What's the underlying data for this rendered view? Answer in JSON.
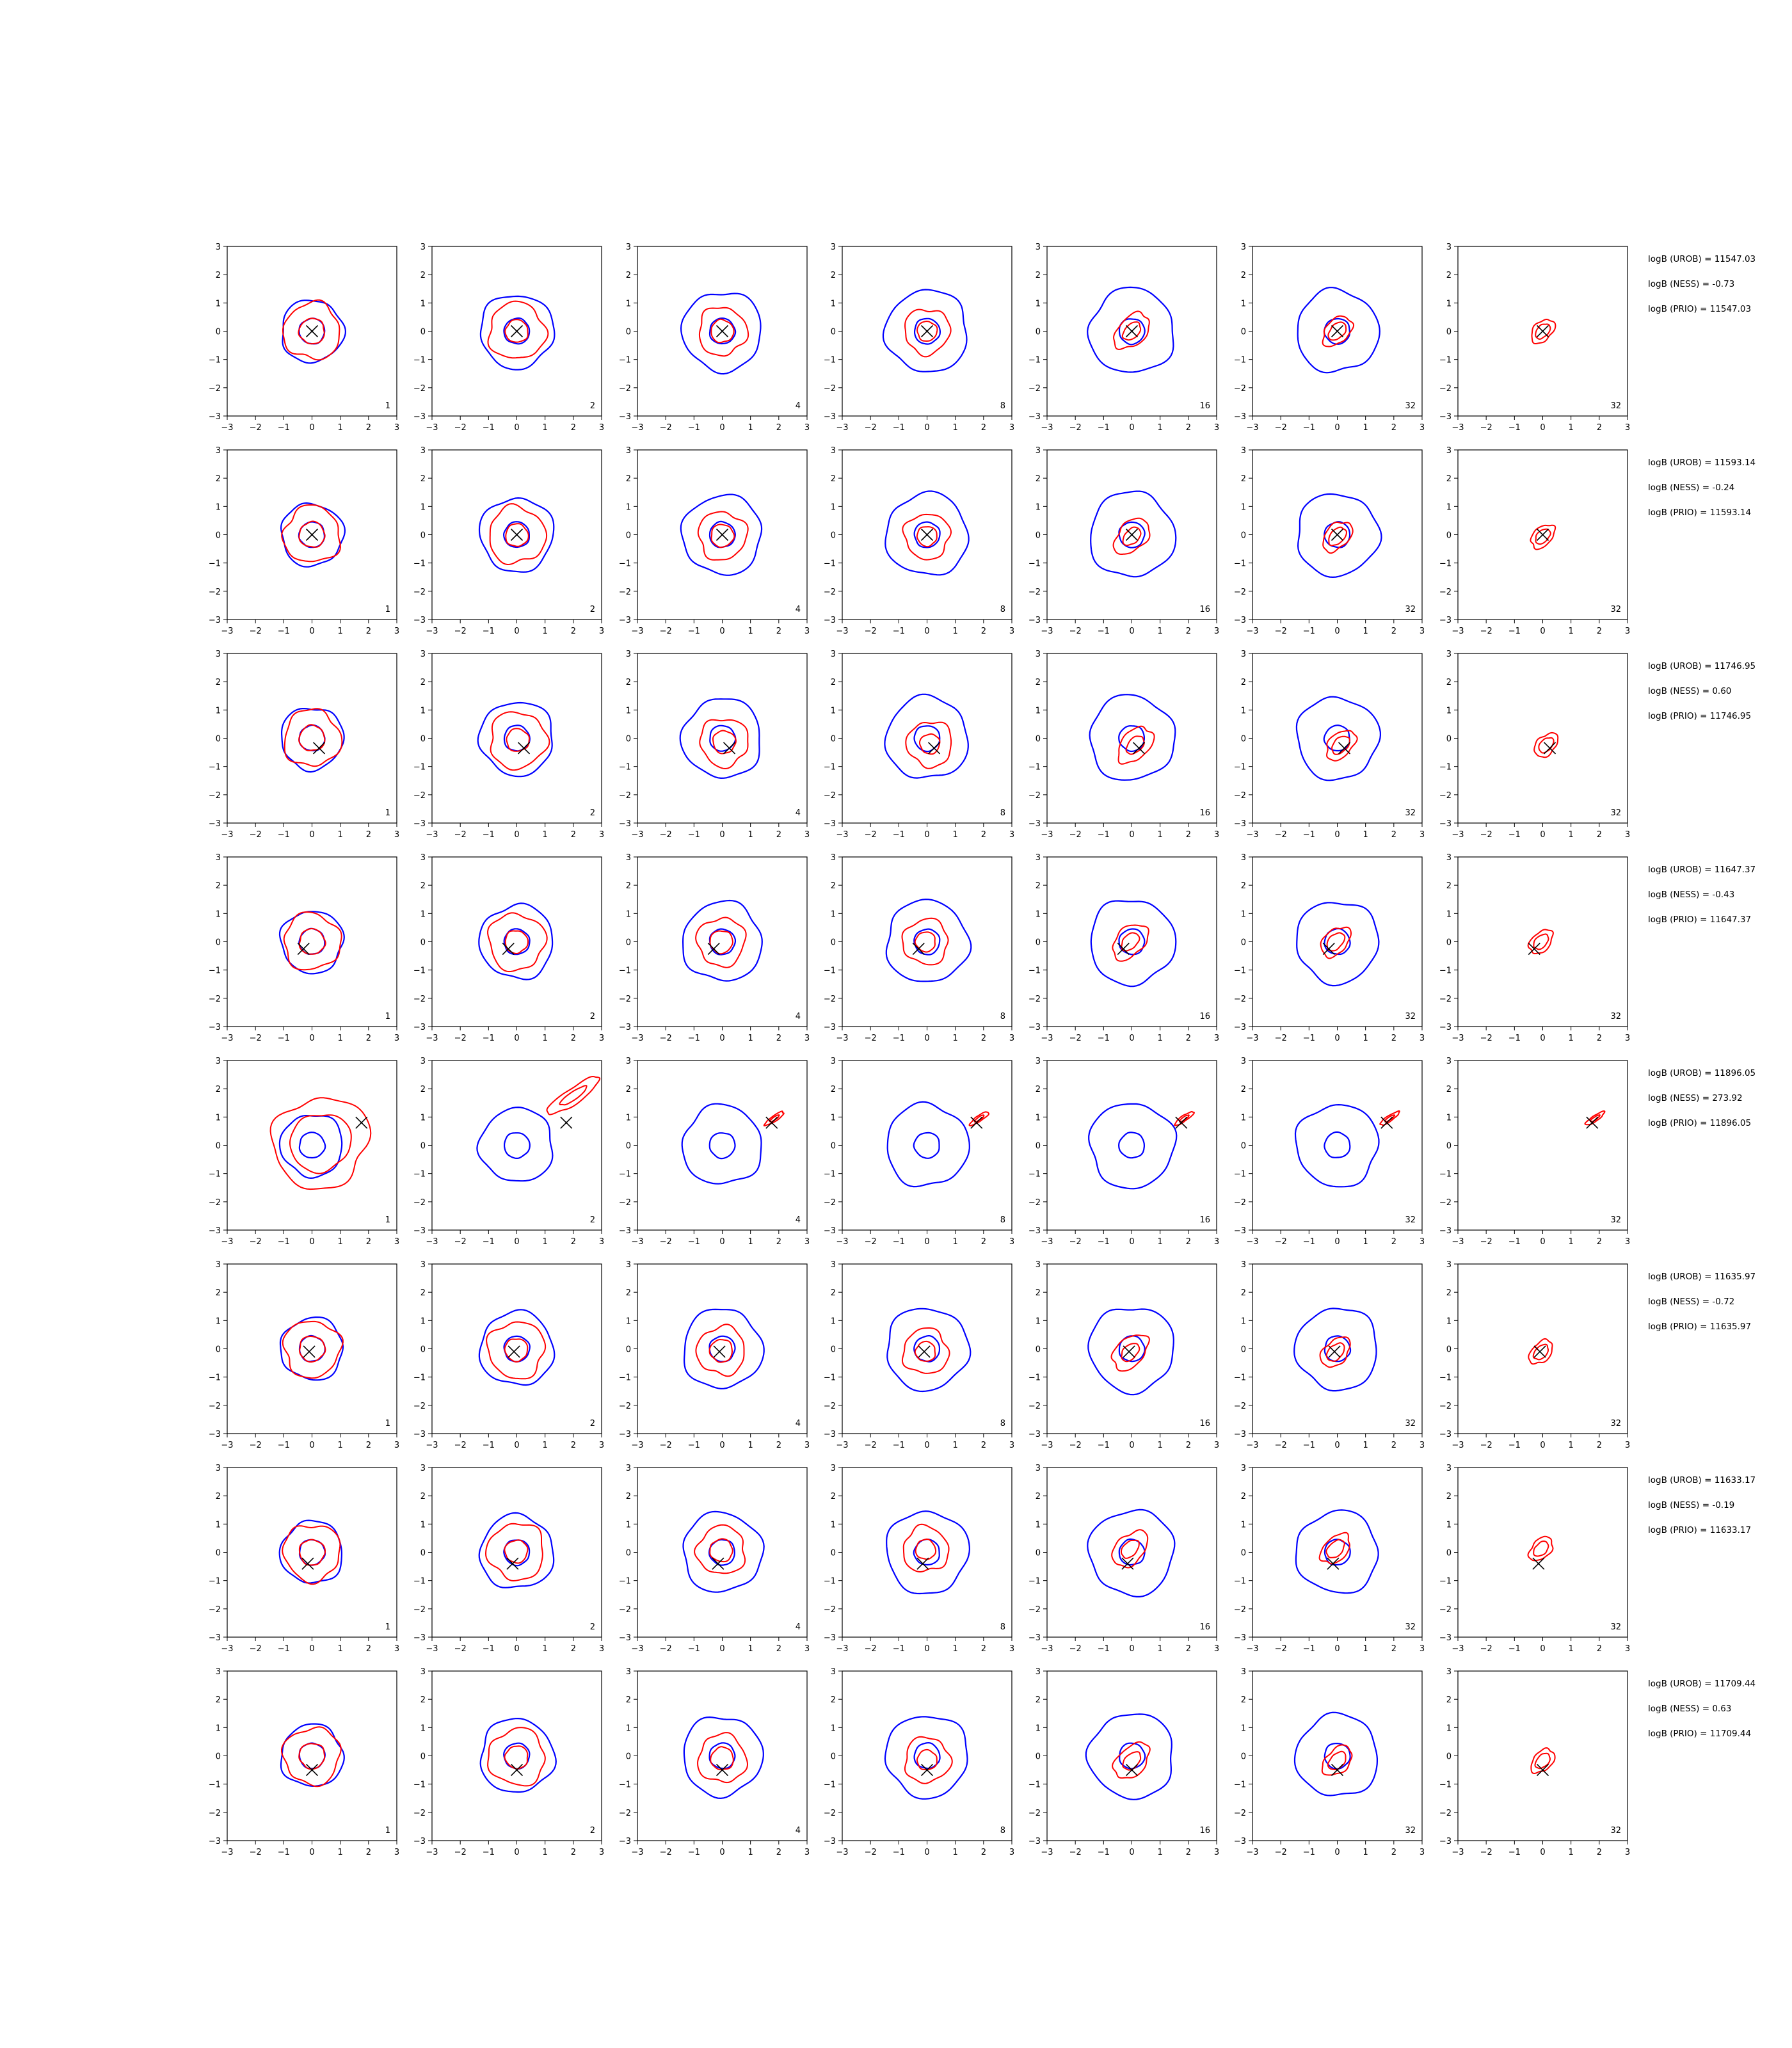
{
  "chart_data": {
    "type": "contour-grid",
    "xlim": [
      -3,
      3
    ],
    "ylim": [
      -3,
      3
    ],
    "xticks": [
      -3,
      -2,
      -1,
      0,
      1,
      2,
      3
    ],
    "yticks": [
      -3,
      -2,
      -1,
      0,
      1,
      2,
      3
    ],
    "column_labels": [
      "1",
      "2",
      "4",
      "8",
      "16",
      "32",
      "32"
    ],
    "colors": {
      "outer": "#0000ff",
      "inner": "#ff0000",
      "marker": "#000000"
    },
    "rows": [
      {
        "marker": [
          0,
          0
        ],
        "stats": [
          "logB (UROB) = 11547.03",
          "logB (NESS) = -0.73",
          "logB (PRIO) = 11547.03"
        ],
        "inner_offset": [
          0,
          0
        ],
        "inner_scale": 1.0
      },
      {
        "marker": [
          0,
          0
        ],
        "stats": [
          "logB (UROB) = 11593.14",
          "logB (NESS) = -0.24",
          "logB (PRIO) = 11593.14"
        ],
        "inner_offset": [
          0,
          -0.1
        ],
        "inner_scale": 1.0
      },
      {
        "marker": [
          0.25,
          -0.35
        ],
        "stats": [
          "logB (UROB) = 11746.95",
          "logB (NESS) = 0.60",
          "logB (PRIO) = 11746.95"
        ],
        "inner_offset": [
          0.2,
          -0.4
        ],
        "inner_scale": 1.0
      },
      {
        "marker": [
          -0.3,
          -0.25
        ],
        "stats": [
          "logB (UROB) = 11647.37",
          "logB (NESS) = -0.43",
          "logB (PRIO) = 11647.37"
        ],
        "inner_offset": [
          -0.1,
          0.0
        ],
        "inner_scale": 1.0
      },
      {
        "marker": [
          1.75,
          0.8
        ],
        "stats": [
          "logB (UROB) = 11896.05",
          "logB (NESS) = 273.92",
          "logB (PRIO) = 11896.05"
        ],
        "inner_offset": [
          1.75,
          0.85
        ],
        "inner_scale": 1.0
      },
      {
        "marker": [
          -0.1,
          -0.1
        ],
        "stats": [
          "logB (UROB) = 11635.97",
          "logB (NESS) = -0.72",
          "logB (PRIO) = 11635.97"
        ],
        "inner_offset": [
          -0.1,
          -0.2
        ],
        "inner_scale": 1.0
      },
      {
        "marker": [
          -0.15,
          -0.4
        ],
        "stats": [
          "logB (UROB) = 11633.17",
          "logB (NESS) = -0.19",
          "logB (PRIO) = 11633.17"
        ],
        "inner_offset": [
          -0.1,
          0.2
        ],
        "inner_scale": 1.0
      },
      {
        "marker": [
          0.0,
          -0.5
        ],
        "stats": [
          "logB (UROB) = 11709.44",
          "logB (NESS) = 0.63",
          "logB (PRIO) = 11709.44"
        ],
        "inner_offset": [
          0.0,
          -0.3
        ],
        "inner_scale": 1.0
      }
    ],
    "outer_contours": {
      "inner_radius": 0.45,
      "outer_radius_by_column": [
        1.1,
        1.3,
        1.4,
        1.45,
        1.5,
        1.45,
        0
      ]
    },
    "inner_contours": {
      "inner_radius_by_column": [
        0.45,
        0.4,
        0.4,
        0.35,
        0.3,
        0.3,
        0.25
      ],
      "outer_radius_by_column": [
        1.0,
        1.0,
        0.85,
        0.8,
        0.6,
        0.5,
        0.4
      ]
    }
  }
}
